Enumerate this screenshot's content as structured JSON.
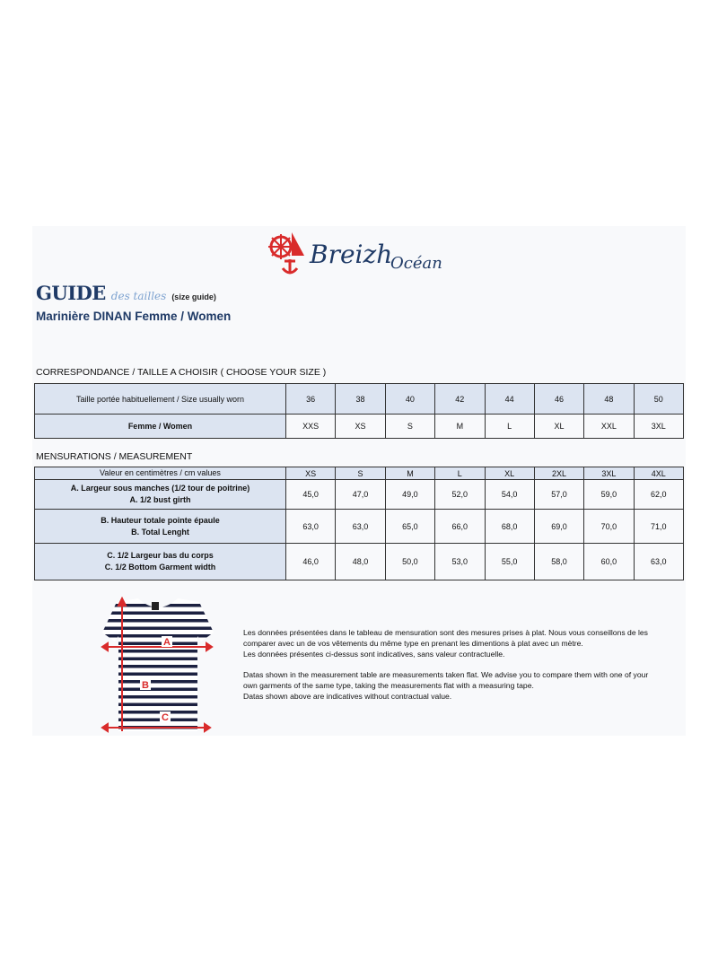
{
  "brand": {
    "logo_text": "Breizh Océan",
    "colors": {
      "red": "#d92b2b",
      "navy": "#1f3a66"
    }
  },
  "header": {
    "guide": "GUIDE",
    "guide_script": "des tailles",
    "guide_note": "(size guide)",
    "subtitle": "Marinière DINAN Femme / Women"
  },
  "correspondence": {
    "title": "CORRESPONDANCE / TAILLE A CHOISIR ( CHOOSE YOUR SIZE )",
    "rows": [
      {
        "label": "Taille portée habituellement / Size usually worn",
        "values": [
          "36",
          "38",
          "40",
          "42",
          "44",
          "46",
          "48",
          "50"
        ]
      },
      {
        "label": "Femme / Women",
        "values": [
          "XXS",
          "XS",
          "S",
          "M",
          "L",
          "XL",
          "XXL",
          "3XL"
        ]
      }
    ]
  },
  "measurement": {
    "title": "MENSURATIONS / MEASUREMENT",
    "header": {
      "label": "Valeur en centimètres / cm values",
      "values": [
        "XS",
        "S",
        "M",
        "L",
        "XL",
        "2XL",
        "3XL",
        "4XL"
      ]
    },
    "rows": [
      {
        "label_fr": "A. Largeur sous manches (1/2 tour de poitrine)",
        "label_en": "A. 1/2 bust girth",
        "values": [
          "45,0",
          "47,0",
          "49,0",
          "52,0",
          "54,0",
          "57,0",
          "59,0",
          "62,0"
        ]
      },
      {
        "label_fr": "B. Hauteur totale pointe épaule",
        "label_en": "B. Total Lenght",
        "values": [
          "63,0",
          "63,0",
          "65,0",
          "66,0",
          "68,0",
          "69,0",
          "70,0",
          "71,0"
        ]
      },
      {
        "label_fr": "C. 1/2 Largeur bas du corps",
        "label_en": "C. 1/2 Bottom Garment width",
        "values": [
          "46,0",
          "48,0",
          "50,0",
          "53,0",
          "55,0",
          "58,0",
          "60,0",
          "63,0"
        ]
      }
    ]
  },
  "diagram": {
    "labels": [
      "A",
      "B",
      "C"
    ]
  },
  "notes": {
    "fr": [
      "Les données présentées dans le tableau de mensuration sont des mesures prises à plat. Nous vous conseillons de les comparer avec un de vos vêtements du même type en prenant les dimentions à plat avec un mètre.",
      "Les données présentes ci-dessus sont indicatives, sans valeur contractuelle."
    ],
    "en": [
      "Datas shown in the measurement table are measurements taken flat. We advise you to compare them with one of your own garments of the same type, taking the measurements flat with a measuring tape.",
      "Datas shown above are indicatives without contractual value."
    ]
  }
}
